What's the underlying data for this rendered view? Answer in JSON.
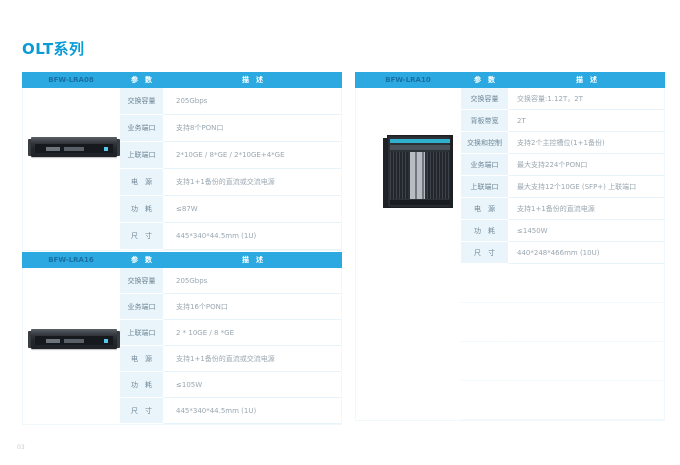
{
  "page": {
    "title": "OLT系列",
    "page_number": "03"
  },
  "headers": {
    "param": "参　数",
    "desc": "描　述"
  },
  "colors": {
    "accent": "#2BA9E0",
    "param_column_bg": "#E9F5FB",
    "title_text": "#0A9BD7",
    "model_text": "#1A6FA3",
    "label_text": "#6E8596",
    "value_text": "#9AA7B0",
    "row_border": "#E7F3FA"
  },
  "tables": [
    {
      "model": "BFW-LRA08",
      "device_icon": "rack-unit-1u",
      "rows": [
        {
          "label": "交换容量",
          "value": "205Gbps"
        },
        {
          "label": "业务端口",
          "value": "支持8个PON口"
        },
        {
          "label": "上联端口",
          "value": "2*10GE / 8*GE / 2*10GE+4*GE"
        },
        {
          "label": "电　源",
          "value": "支持1+1备份的直流或交流电源"
        },
        {
          "label": "功　耗",
          "value": "≤87W"
        },
        {
          "label": "尺　寸",
          "value": "445*340*44.5mm (1U)"
        }
      ]
    },
    {
      "model": "BFW-LRA16",
      "device_icon": "rack-unit-1u",
      "rows": [
        {
          "label": "交换容量",
          "value": "205Gbps"
        },
        {
          "label": "业务端口",
          "value": "支持16个PON口"
        },
        {
          "label": "上联端口",
          "value": "2 * 10GE / 8 *GE"
        },
        {
          "label": "电　源",
          "value": "支持1+1备份的直流或交流电源"
        },
        {
          "label": "功　耗",
          "value": "≤105W"
        },
        {
          "label": "尺　寸",
          "value": "445*340*44.5mm (1U)"
        }
      ]
    },
    {
      "model": "BFW-LRA10",
      "device_icon": "chassis-olt",
      "rows": [
        {
          "label": "交换容量",
          "value": "交换容量:1.12T，2T"
        },
        {
          "label": "背板带宽",
          "value": "2T"
        },
        {
          "label": "交换和控制",
          "value": "支持2个主控槽位(1+1备份)"
        },
        {
          "label": "业务端口",
          "value": "最大支持224个PON口"
        },
        {
          "label": "上联端口",
          "value": "最大支持12个10GE (SFP+) 上联端口"
        },
        {
          "label": "电　源",
          "value": "支持1+1备份的直流电源"
        },
        {
          "label": "功　耗",
          "value": "≤1450W"
        },
        {
          "label": "尺　寸",
          "value": "440*248*466mm (10U)"
        }
      ]
    }
  ]
}
